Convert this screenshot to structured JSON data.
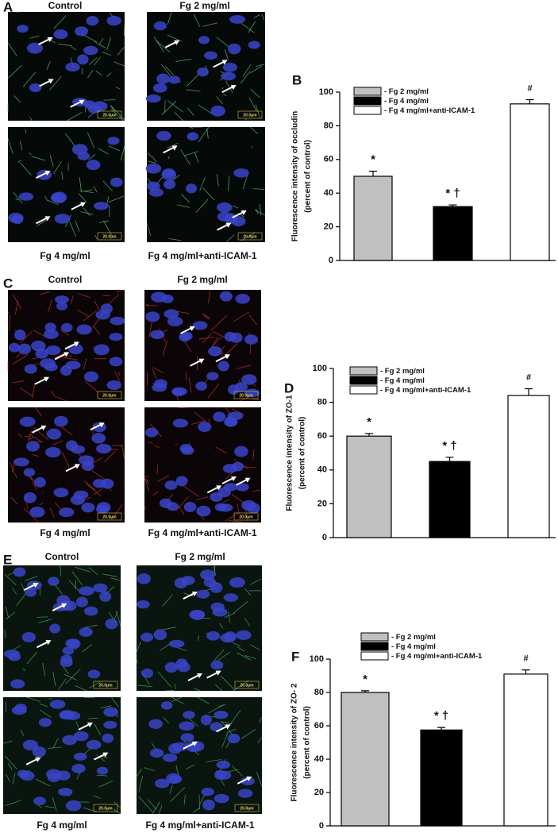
{
  "panels": [
    {
      "letter": "A",
      "labels": [
        "Control",
        "Fg 2 mg/ml",
        "Fg 4 mg/ml",
        "Fg 4 mg/ml+anti-ICAM-1"
      ],
      "scale_bar": "20.0μm"
    },
    {
      "letter": "C",
      "labels": [
        "Control",
        "Fg 2 mg/ml",
        "Fg 4 mg/ml",
        "Fg 4 mg/ml+anti-ICAM-1"
      ],
      "scale_bar": "20.0μm"
    },
    {
      "letter": "E",
      "labels": [
        "Control",
        "Fg 2 mg/ml",
        "Fg 4 mg/ml",
        "Fg 4 mg/ml+anti-ICAM-1"
      ],
      "scale_bar": "20.0μm"
    }
  ],
  "chart_data": [
    {
      "type": "bar",
      "panel_label": "B",
      "ylabel": [
        "Fluorescence intensity of occludin",
        "(percent of control)"
      ],
      "series": [
        {
          "name": "- Fg 2 mg/ml",
          "color": "#c0c0c0",
          "values": [
            50
          ],
          "errors": [
            3
          ]
        },
        {
          "name": "- Fg 4 mg/ml",
          "color": "#000000",
          "values": [
            32
          ],
          "errors": [
            1
          ]
        },
        {
          "name": "- Fg 4 mg/ml+anti-ICAM-1",
          "color": "#ffffff",
          "values": [
            93
          ],
          "errors": [
            2.5
          ]
        }
      ],
      "annotations": [
        "*",
        "* †",
        "#"
      ],
      "ylim": [
        0,
        100
      ],
      "yticks": [
        0,
        20,
        40,
        60,
        80,
        100
      ]
    },
    {
      "type": "bar",
      "panel_label": "D",
      "ylabel": [
        "Fluorescence intensity of ZO-1",
        "(percent of control)"
      ],
      "series": [
        {
          "name": "- Fg 2 mg/ml",
          "color": "#c0c0c0",
          "values": [
            60
          ],
          "errors": [
            1.5
          ]
        },
        {
          "name": "- Fg 4 mg/ml",
          "color": "#000000",
          "values": [
            45
          ],
          "errors": [
            2.5
          ]
        },
        {
          "name": "- Fg 4 mg/ml+anti-ICAM-1",
          "color": "#ffffff",
          "values": [
            84
          ],
          "errors": [
            4
          ]
        }
      ],
      "annotations": [
        "*",
        "* †",
        "#"
      ],
      "ylim": [
        0,
        100
      ],
      "yticks": [
        0,
        20,
        40,
        60,
        80,
        100
      ]
    },
    {
      "type": "bar",
      "panel_label": "F",
      "ylabel": [
        "Fluorescence intensity of ZO- 2",
        "(percent of control)"
      ],
      "series": [
        {
          "name": "- Fg 2 mg/ml",
          "color": "#c0c0c0",
          "values": [
            80
          ],
          "errors": [
            1
          ]
        },
        {
          "name": "- Fg 4 mg/ml",
          "color": "#000000",
          "values": [
            57.5
          ],
          "errors": [
            1.5
          ]
        },
        {
          "name": "- Fg 4 mg/ml+anti-ICAM-1",
          "color": "#ffffff",
          "values": [
            91
          ],
          "errors": [
            2.5
          ]
        }
      ],
      "annotations": [
        "*",
        "* †",
        "#"
      ],
      "ylim": [
        0,
        100
      ],
      "yticks": [
        0,
        20,
        40,
        60,
        80,
        100
      ]
    }
  ]
}
